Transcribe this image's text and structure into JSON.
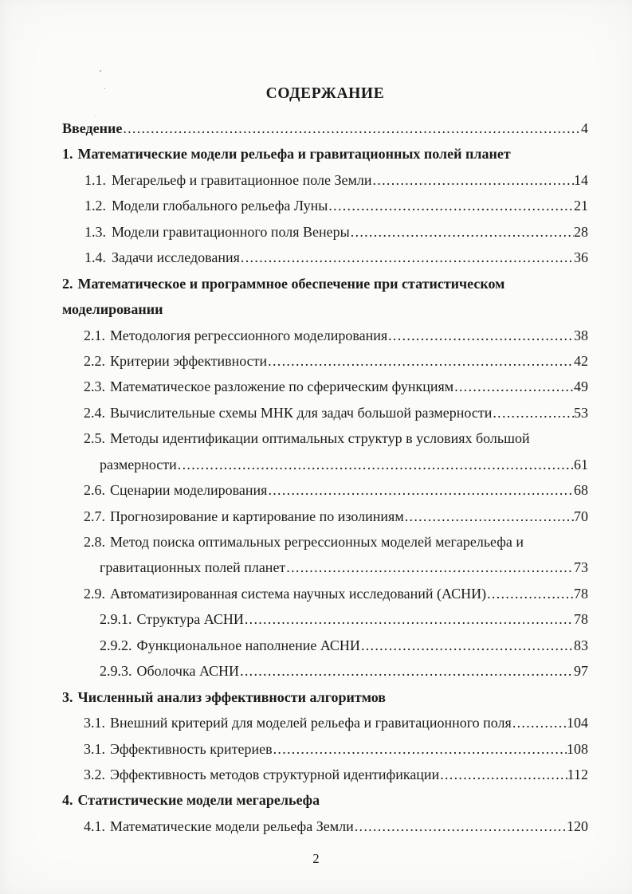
{
  "page": {
    "title": "СОДЕРЖАНИЕ",
    "page_number": "2",
    "background": "#fbfbf9",
    "text_color": "#1b1b1b"
  },
  "toc": {
    "entries": [
      {
        "style": "h",
        "num": "",
        "text": "Введение",
        "page": "4"
      },
      {
        "style": "h",
        "num": "1.",
        "text": "Математические модели рельефа и гравитационных полей планет",
        "page": null
      },
      {
        "style": "t",
        "num": "1.1.",
        "text": "Мегарельеф и гравитационное поле Земли",
        "page": "14"
      },
      {
        "style": "t",
        "num": "1.2.",
        "text": "Модели глобального рельефа Луны",
        "page": "21"
      },
      {
        "style": "t",
        "num": "1.3.",
        "text": "Модели гравитационного поля Венеры",
        "page": "28"
      },
      {
        "style": "t",
        "num": "1.4.",
        "text": "Задачи исследования",
        "page": "36"
      },
      {
        "style": "h",
        "num": "2.",
        "text": "Математическое и программное обеспечение при статистическом",
        "page": null
      },
      {
        "style": "h",
        "num": "",
        "text": "моделировании",
        "page": null
      },
      {
        "style": "s",
        "num": "2.1.",
        "text": "Методология регрессионного моделирования",
        "page": "38"
      },
      {
        "style": "s",
        "num": "2.2.",
        "text": "Критерии эффективности",
        "page": "42"
      },
      {
        "style": "s",
        "num": "2.3.",
        "text": "Математическое разложение по сферическим функциям",
        "page": "49"
      },
      {
        "style": "s",
        "num": "2.4.",
        "text": "Вычислительные схемы МНК для задач большой размерности",
        "page": "53"
      },
      {
        "style": "s",
        "num": "2.5.",
        "text": "Методы идентификации оптимальных структур в условиях большой",
        "page": null
      },
      {
        "style": "c",
        "num": "",
        "text": "размерности",
        "page": "61"
      },
      {
        "style": "s",
        "num": "2.6.",
        "text": "Сценарии моделирования",
        "page": "68"
      },
      {
        "style": "s",
        "num": "2.7.",
        "text": "Прогнозирование и картирование по изолиниям",
        "page": "70"
      },
      {
        "style": "s",
        "num": "2.8.",
        "text": "Метод поиска оптимальных регрессионных моделей мегарельефа и",
        "page": null
      },
      {
        "style": "c",
        "num": "",
        "text": "гравитационных полей планет",
        "page": "73"
      },
      {
        "style": "s",
        "num": "2.9.",
        "text": "Автоматизированная система научных исследований (АСНИ)",
        "page": "78"
      },
      {
        "style": "u",
        "num": "2.9.1.",
        "text": "Структура АСНИ",
        "page": "78"
      },
      {
        "style": "u",
        "num": "2.9.2.",
        "text": "Функциональное наполнение АСНИ",
        "page": "83"
      },
      {
        "style": "u",
        "num": "2.9.3.",
        "text": "Оболочка АСНИ",
        "page": "97"
      },
      {
        "style": "h",
        "num": "3.",
        "text": "Численный анализ эффективности алгоритмов",
        "page": null
      },
      {
        "style": "s",
        "num": "3.1.",
        "text": "Внешний критерий для моделей рельефа и гравитационного поля",
        "page": "104"
      },
      {
        "style": "s",
        "num": "3.1.",
        "text": "Эффективность критериев",
        "page": "108"
      },
      {
        "style": "s",
        "num": "3.2.",
        "text": "Эффективность методов структурной идентификации",
        "page": "112"
      },
      {
        "style": "h",
        "num": "4.",
        "text": "Статистические модели мегарельефа",
        "page": null
      },
      {
        "style": "s",
        "num": "4.1.",
        "text": "Математические модели рельефа Земли",
        "page": "120"
      }
    ]
  }
}
